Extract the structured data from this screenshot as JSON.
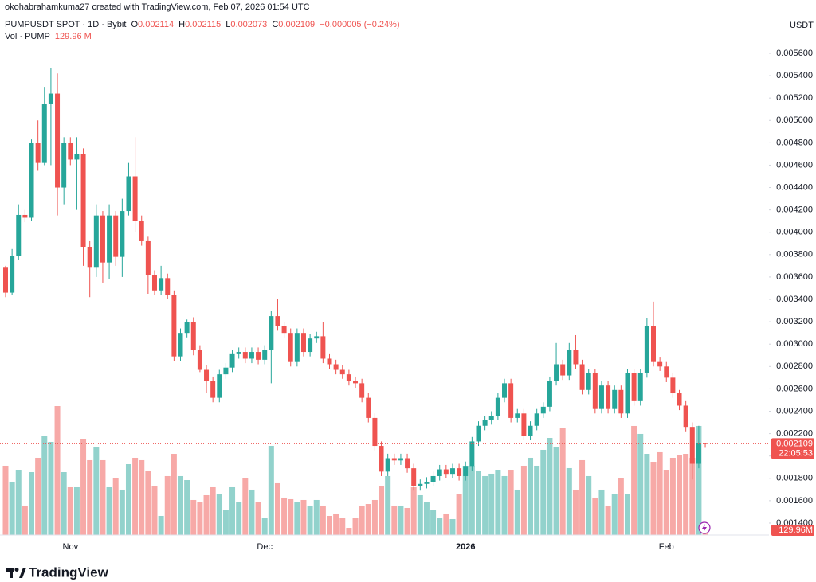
{
  "watermark": "okohabrahamkuma27 created with TradingView.com, Feb 07, 2026 01:54 UTC",
  "brand": "TradingView",
  "chart_data": {
    "type": "candlestick",
    "legend": {
      "symbol": "PUMPUSDT SPOT · 1D · Bybit",
      "fields": [
        {
          "label": "O",
          "value": "0.002114"
        },
        {
          "label": "H",
          "value": "0.002115"
        },
        {
          "label": "L",
          "value": "0.002073"
        },
        {
          "label": "C",
          "value": "0.002109"
        }
      ],
      "change": "−0.000005 (−0.24%)",
      "volume_label": "Vol · PUMP",
      "volume_value": "129.96 M"
    },
    "axis_unit": "USDT",
    "up_color": "#26a69a",
    "down_color": "#ef5350",
    "grid": false,
    "categories": [
      null,
      null,
      null,
      null,
      null,
      null,
      null,
      null,
      null,
      null,
      "Nov",
      null,
      null,
      null,
      null,
      null,
      null,
      null,
      null,
      null,
      null,
      null,
      null,
      null,
      null,
      null,
      null,
      null,
      null,
      null,
      null,
      null,
      null,
      null,
      null,
      null,
      null,
      null,
      null,
      null,
      "Dec",
      null,
      null,
      null,
      null,
      null,
      null,
      null,
      null,
      null,
      null,
      null,
      null,
      null,
      null,
      null,
      null,
      null,
      null,
      null,
      null,
      null,
      null,
      null,
      null,
      null,
      null,
      null,
      null,
      null,
      null,
      "2026",
      null,
      null,
      null,
      null,
      null,
      null,
      null,
      null,
      null,
      null,
      null,
      null,
      null,
      null,
      null,
      null,
      null,
      null,
      null,
      null,
      null,
      null,
      null,
      null,
      null,
      null,
      null,
      null,
      null,
      null,
      "Feb",
      null,
      null,
      null,
      null,
      null,
      null
    ],
    "open": [
      0.00369,
      0.00346,
      0.00379,
      0.004155,
      0.00413,
      0.0048,
      0.00462,
      0.00515,
      0.00524,
      0.0044,
      0.0048,
      0.00465,
      0.0047,
      0.00387,
      0.00369,
      0.00415,
      0.00373,
      0.00415,
      0.00378,
      0.00419,
      0.0045,
      0.0041,
      0.00392,
      0.00362,
      0.00348,
      0.00359,
      0.00344,
      0.00289,
      0.0031,
      0.0032,
      0.002945,
      0.00277,
      0.00267,
      0.00252,
      0.00273,
      0.00279,
      0.00291,
      0.00293,
      0.00287,
      0.00293,
      0.00286,
      0.002945,
      0.00325,
      0.00316,
      0.0031,
      0.00284,
      0.0031,
      0.00293,
      0.00305,
      0.00307,
      0.00287,
      0.00282,
      0.00277,
      0.00273,
      0.00267,
      0.00265,
      0.00252,
      0.00234,
      0.00209,
      0.00186,
      0.00198,
      0.00196,
      0.00198,
      0.00189,
      0.00173,
      0.00175,
      0.00177,
      0.00182,
      0.00188,
      0.00184,
      0.00189,
      0.00182,
      0.00191,
      0.00213,
      0.00227,
      0.00232,
      0.00236,
      0.00252,
      0.00265,
      0.00234,
      0.00238,
      0.00218,
      0.00227,
      0.00238,
      0.00244,
      0.00267,
      0.00282,
      0.00272,
      0.00295,
      0.00282,
      0.00259,
      0.00274,
      0.00242,
      0.00263,
      0.00242,
      0.00259,
      0.00238,
      0.00274,
      0.00249,
      0.00274,
      0.00316,
      0.00284,
      0.0028,
      0.0027,
      0.00256,
      0.00245,
      0.00226,
      0.00193,
      0.002114
    ],
    "high": [
      0.0037,
      0.00385,
      0.00425,
      0.0042,
      0.00483,
      0.005,
      0.0053,
      0.00547,
      0.00542,
      0.00485,
      0.00485,
      0.00485,
      0.00475,
      0.00392,
      0.00425,
      0.00419,
      0.00425,
      0.00419,
      0.0043,
      0.00462,
      0.00485,
      0.00415,
      0.00396,
      0.00366,
      0.0037,
      0.00363,
      0.00348,
      0.00314,
      0.00322,
      0.00324,
      0.00299,
      0.00281,
      0.00271,
      0.00277,
      0.00283,
      0.00295,
      0.00297,
      0.00297,
      0.00297,
      0.00297,
      0.00299,
      0.0033,
      0.0034,
      0.0032,
      0.00314,
      0.00314,
      0.00314,
      0.00309,
      0.00311,
      0.0032,
      0.00291,
      0.00286,
      0.00281,
      0.00277,
      0.00271,
      0.00269,
      0.00256,
      0.00238,
      0.00213,
      0.00202,
      0.00202,
      0.00202,
      0.00202,
      0.00193,
      0.00179,
      0.00181,
      0.00186,
      0.00192,
      0.00192,
      0.00193,
      0.00193,
      0.00195,
      0.00217,
      0.00231,
      0.00236,
      0.0024,
      0.00256,
      0.00269,
      0.00269,
      0.00242,
      0.00242,
      0.00231,
      0.00242,
      0.00248,
      0.00271,
      0.00301,
      0.00286,
      0.00301,
      0.00308,
      0.00286,
      0.00278,
      0.00278,
      0.00267,
      0.00267,
      0.00263,
      0.00263,
      0.00278,
      0.00278,
      0.00278,
      0.00323,
      0.00338,
      0.00288,
      0.00284,
      0.00274,
      0.00259,
      0.00249,
      0.0023,
      0.00227,
      0.002115
    ],
    "low": [
      0.00342,
      0.00344,
      0.00375,
      0.00409,
      0.0041,
      0.00455,
      0.0046,
      0.0046,
      0.00415,
      0.00425,
      0.0046,
      0.0042,
      0.0037,
      0.00342,
      0.0036,
      0.00355,
      0.00358,
      0.0037,
      0.0036,
      0.00415,
      0.004,
      0.00388,
      0.00345,
      0.00344,
      0.00344,
      0.0034,
      0.00285,
      0.00285,
      0.00306,
      0.0029,
      0.00275,
      0.00256,
      0.00248,
      0.00248,
      0.00269,
      0.00275,
      0.00287,
      0.00283,
      0.00283,
      0.00282,
      0.00282,
      0.00265,
      0.00312,
      0.00306,
      0.0028,
      0.0028,
      0.00289,
      0.00289,
      0.00301,
      0.00283,
      0.00278,
      0.00273,
      0.00269,
      0.00263,
      0.00261,
      0.00248,
      0.0023,
      0.00205,
      0.00182,
      0.00182,
      0.00192,
      0.00192,
      0.00185,
      0.00169,
      0.00169,
      0.00171,
      0.00173,
      0.00178,
      0.0018,
      0.0018,
      0.00178,
      0.00178,
      0.00187,
      0.00209,
      0.00223,
      0.00228,
      0.00232,
      0.00248,
      0.0023,
      0.0023,
      0.00214,
      0.00214,
      0.00223,
      0.00234,
      0.0024,
      0.00263,
      0.00268,
      0.00268,
      0.00278,
      0.00255,
      0.00255,
      0.00238,
      0.00238,
      0.00238,
      0.00238,
      0.00234,
      0.00234,
      0.00245,
      0.00245,
      0.0027,
      0.0028,
      0.00276,
      0.00266,
      0.00252,
      0.00241,
      0.00222,
      0.00179,
      0.00189,
      0.002073
    ],
    "close": [
      0.00346,
      0.00379,
      0.004155,
      0.00413,
      0.0048,
      0.00462,
      0.00515,
      0.00524,
      0.0044,
      0.0048,
      0.00465,
      0.0047,
      0.00387,
      0.00369,
      0.00415,
      0.00373,
      0.00415,
      0.00378,
      0.00419,
      0.0045,
      0.0041,
      0.00392,
      0.00362,
      0.00348,
      0.00359,
      0.00344,
      0.00289,
      0.0031,
      0.0032,
      0.002945,
      0.00277,
      0.00267,
      0.00252,
      0.00273,
      0.00279,
      0.00291,
      0.00293,
      0.00287,
      0.00293,
      0.00286,
      0.002945,
      0.00325,
      0.00316,
      0.0031,
      0.00284,
      0.0031,
      0.00293,
      0.00305,
      0.00307,
      0.00287,
      0.00282,
      0.00277,
      0.00273,
      0.00267,
      0.00265,
      0.00252,
      0.00234,
      0.00209,
      0.00186,
      0.00198,
      0.00196,
      0.00198,
      0.00189,
      0.00173,
      0.00175,
      0.00177,
      0.00182,
      0.00188,
      0.00184,
      0.00189,
      0.00182,
      0.00191,
      0.00213,
      0.00227,
      0.00232,
      0.00236,
      0.00252,
      0.00265,
      0.00234,
      0.00238,
      0.00218,
      0.00227,
      0.00238,
      0.00244,
      0.00267,
      0.00282,
      0.00272,
      0.00295,
      0.00282,
      0.00259,
      0.00274,
      0.00242,
      0.00263,
      0.00242,
      0.00259,
      0.00238,
      0.00274,
      0.00249,
      0.00274,
      0.00316,
      0.00284,
      0.0028,
      0.0027,
      0.00256,
      0.00245,
      0.00226,
      0.00193,
      0.002114,
      0.002109
    ],
    "volume": [
      1888,
      1454,
      1779,
      803,
      1714,
      2105,
      2691,
      2539,
      3515,
      1714,
      1302,
      1302,
      2604,
      2040,
      2387,
      2040,
      1302,
      1562,
      1237,
      1931,
      2105,
      2040,
      1736,
      1345,
      521,
      1606,
      2213,
      1606,
      1497,
      955,
      911,
      1085,
      1302,
      1128,
      694,
      1302,
      911,
      1562,
      1237,
      911,
      477,
      2430,
      1411,
      1020,
      977,
      911,
      955,
      803,
      955,
      803,
      521,
      586,
      477,
      195,
      477,
      803,
      846,
      955,
      1345,
      1606,
      803,
      803,
      738,
      1302,
      1085,
      911,
      694,
      477,
      586,
      434,
      1128,
      1888,
      1888,
      1736,
      1606,
      1671,
      1779,
      1606,
      1779,
      1237,
      1888,
      2105,
      1888,
      2322,
      2647,
      2387,
      2908,
      1823,
      1237,
      2040,
      1606,
      1020,
      1237,
      803,
      1128,
      1562,
      1128,
      2973,
      2756,
      2213,
      1996,
      2257,
      1779,
      2105,
      2170,
      2213,
      2105,
      2973,
      129.96
    ],
    "ylim": [
      0.001293,
      0.005792
    ],
    "yticks": [
      {
        "value": 0.0014,
        "label": "0.001400"
      },
      {
        "value": 0.0016,
        "label": "0.001600"
      },
      {
        "value": 0.0018,
        "label": "0.001800"
      },
      {
        "value": 0.002,
        "label": "0.002000"
      },
      {
        "value": 0.0022,
        "label": "0.002200"
      },
      {
        "value": 0.0024,
        "label": "0.002400"
      },
      {
        "value": 0.0026,
        "label": "0.002600"
      },
      {
        "value": 0.0028,
        "label": "0.002800"
      },
      {
        "value": 0.003,
        "label": "0.003000"
      },
      {
        "value": 0.0032,
        "label": "0.003200"
      },
      {
        "value": 0.0034,
        "label": "0.003400"
      },
      {
        "value": 0.0036,
        "label": "0.003600"
      },
      {
        "value": 0.0038,
        "label": "0.003800"
      },
      {
        "value": 0.004,
        "label": "0.004000"
      },
      {
        "value": 0.0042,
        "label": "0.004200"
      },
      {
        "value": 0.0044,
        "label": "0.004400"
      },
      {
        "value": 0.0046,
        "label": "0.004600"
      },
      {
        "value": 0.0048,
        "label": "0.004800"
      },
      {
        "value": 0.005,
        "label": "0.005000"
      },
      {
        "value": 0.0052,
        "label": "0.005200"
      },
      {
        "value": 0.0054,
        "label": "0.005400"
      },
      {
        "value": 0.0056,
        "label": "0.005600"
      }
    ],
    "price_tag": {
      "value": 0.002109,
      "label": "0.002109"
    },
    "countdown": "22:05:53",
    "volume_tag": "129.96M"
  }
}
